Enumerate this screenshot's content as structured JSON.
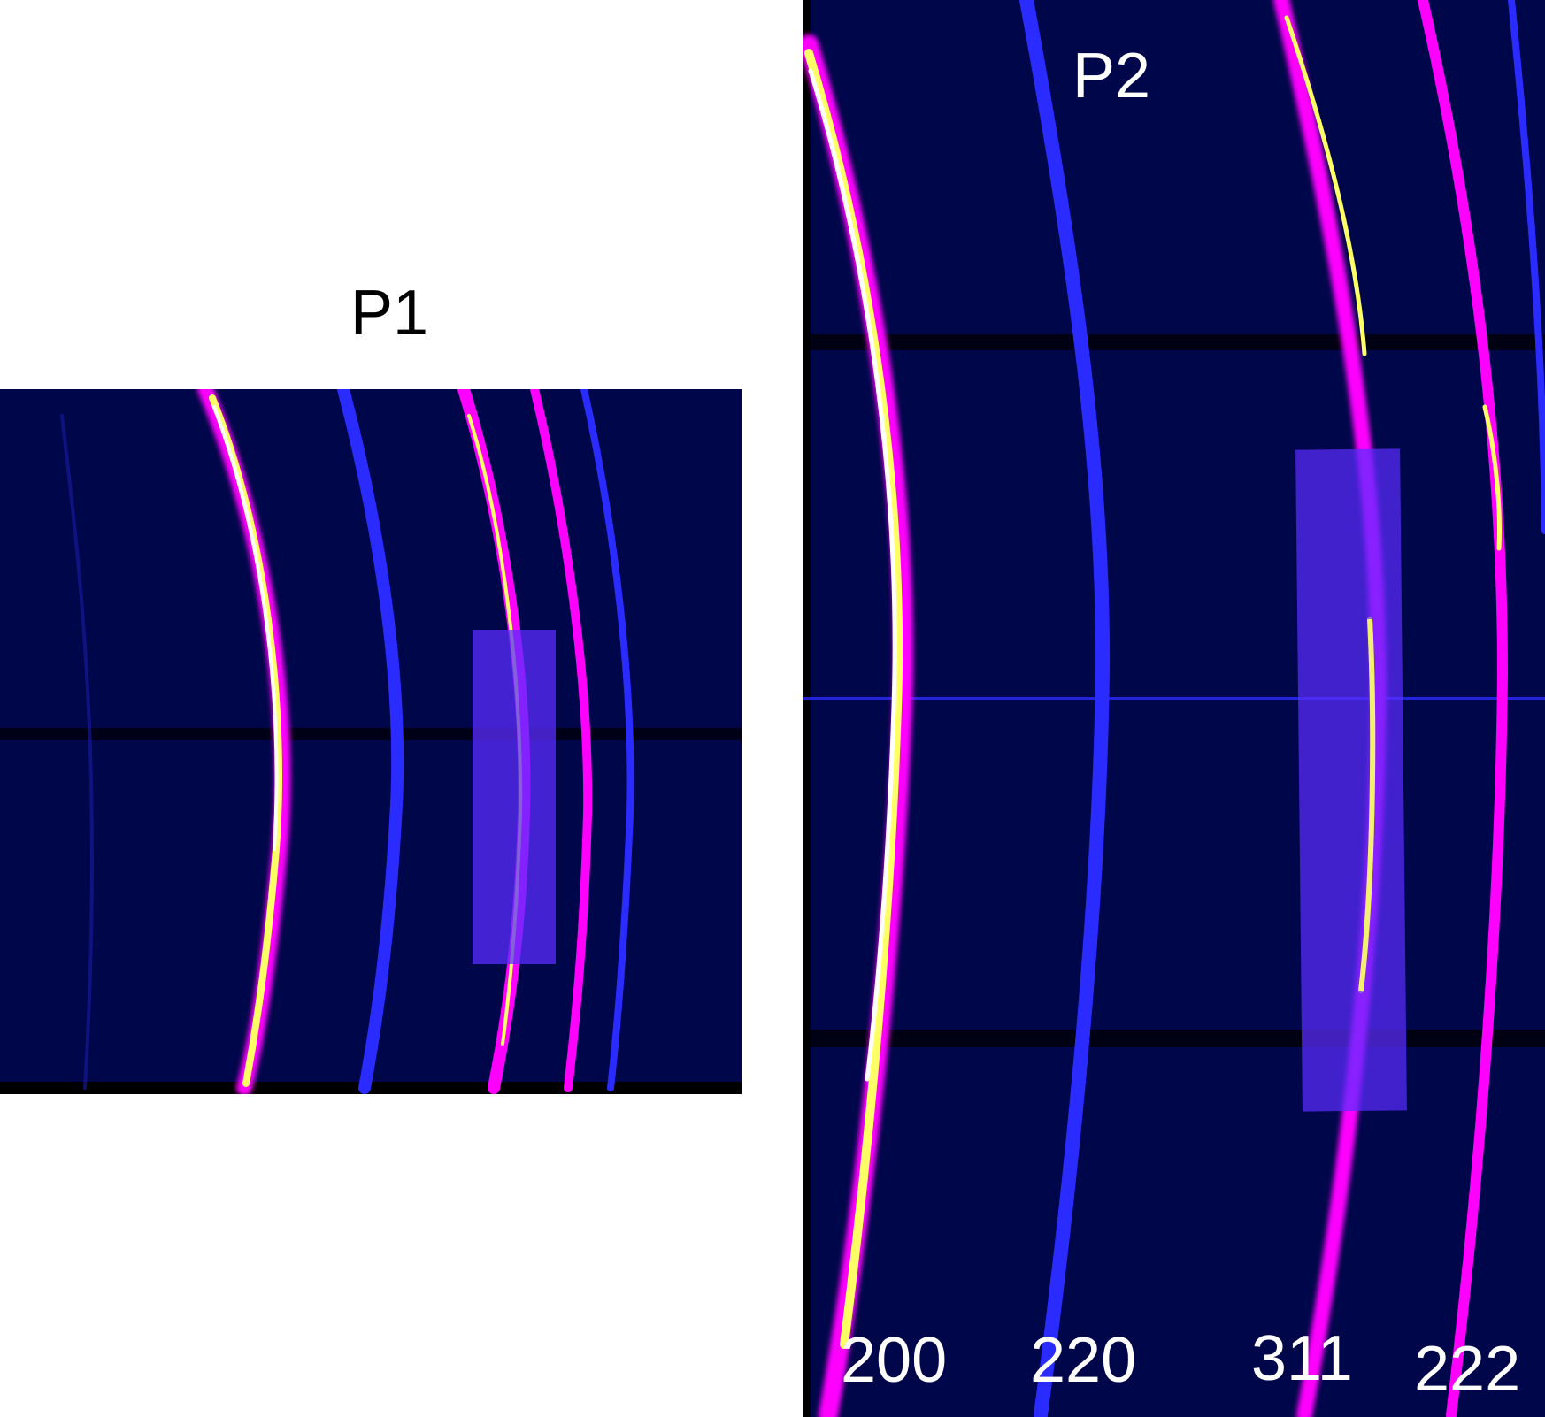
{
  "panels": [
    {
      "id": "p1",
      "title": "P1"
    },
    {
      "id": "p2",
      "title": "P2"
    }
  ],
  "reflections": [
    "200",
    "220",
    "311",
    "222"
  ],
  "colors": {
    "background": "#00064a",
    "ring_dim": "#2a2cff",
    "ring_mid": "#ff00ff",
    "ring_hot": "#ffff66",
    "ring_core": "#ffffff",
    "highlight_box": "#5a2cff",
    "beam_shadow": "#000000"
  }
}
